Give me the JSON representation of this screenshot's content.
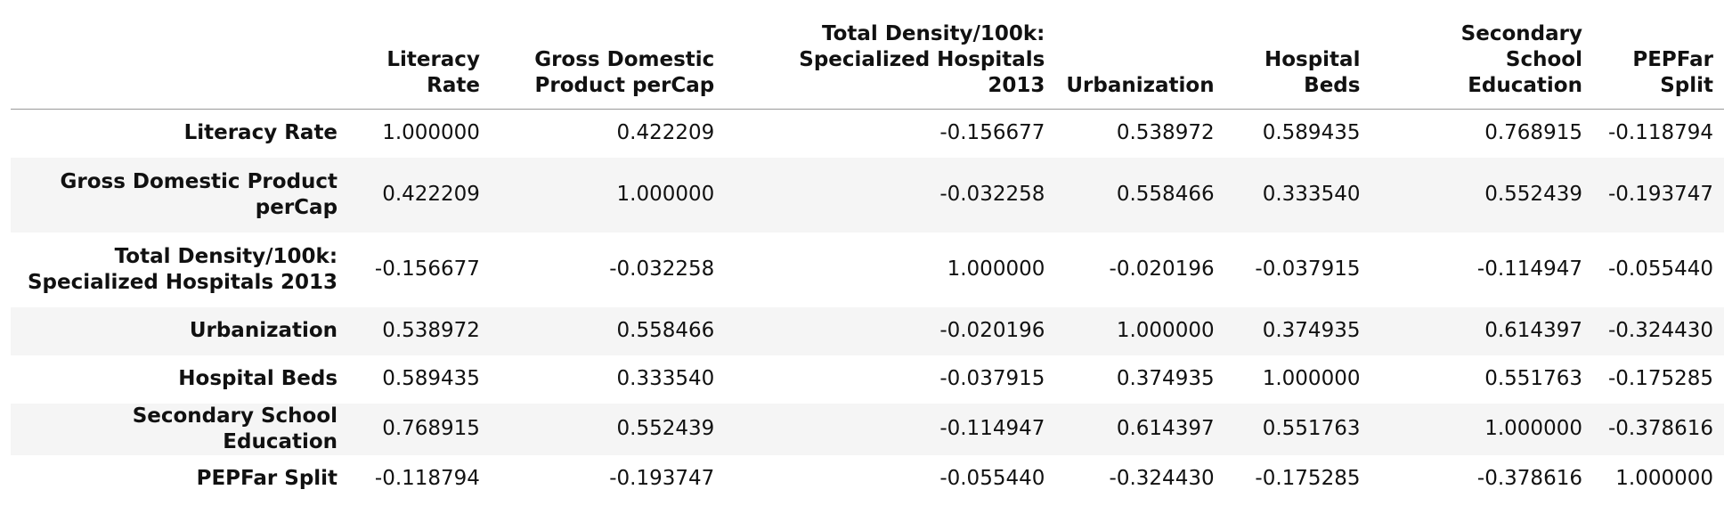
{
  "table": {
    "columns": [
      "Literacy\nRate",
      "Gross Domestic\nProduct perCap",
      "Total Density/100k:\nSpecialized Hospitals 2013",
      "Urbanization",
      "Hospital\nBeds",
      "Secondary School\nEducation",
      "PEPFar\nSplit"
    ],
    "rows": [
      {
        "label": "Literacy Rate",
        "values": [
          "1.000000",
          "0.422209",
          "-0.156677",
          "0.538972",
          "0.589435",
          "0.768915",
          "-0.118794"
        ]
      },
      {
        "label": "Gross Domestic Product\nperCap",
        "values": [
          "0.422209",
          "1.000000",
          "-0.032258",
          "0.558466",
          "0.333540",
          "0.552439",
          "-0.193747"
        ]
      },
      {
        "label": "Total Density/100k:\nSpecialized Hospitals 2013",
        "values": [
          "-0.156677",
          "-0.032258",
          "1.000000",
          "-0.020196",
          "-0.037915",
          "-0.114947",
          "-0.055440"
        ]
      },
      {
        "label": "Urbanization",
        "values": [
          "0.538972",
          "0.558466",
          "-0.020196",
          "1.000000",
          "0.374935",
          "0.614397",
          "-0.324430"
        ]
      },
      {
        "label": "Hospital Beds",
        "values": [
          "0.589435",
          "0.333540",
          "-0.037915",
          "0.374935",
          "1.000000",
          "0.551763",
          "-0.175285"
        ]
      },
      {
        "label": "Secondary School Education",
        "values": [
          "0.768915",
          "0.552439",
          "-0.114947",
          "0.614397",
          "0.551763",
          "1.000000",
          "-0.378616"
        ]
      },
      {
        "label": "PEPFar Split",
        "values": [
          "-0.118794",
          "-0.193747",
          "-0.055440",
          "-0.324430",
          "-0.175285",
          "-0.378616",
          "1.000000"
        ]
      }
    ]
  }
}
